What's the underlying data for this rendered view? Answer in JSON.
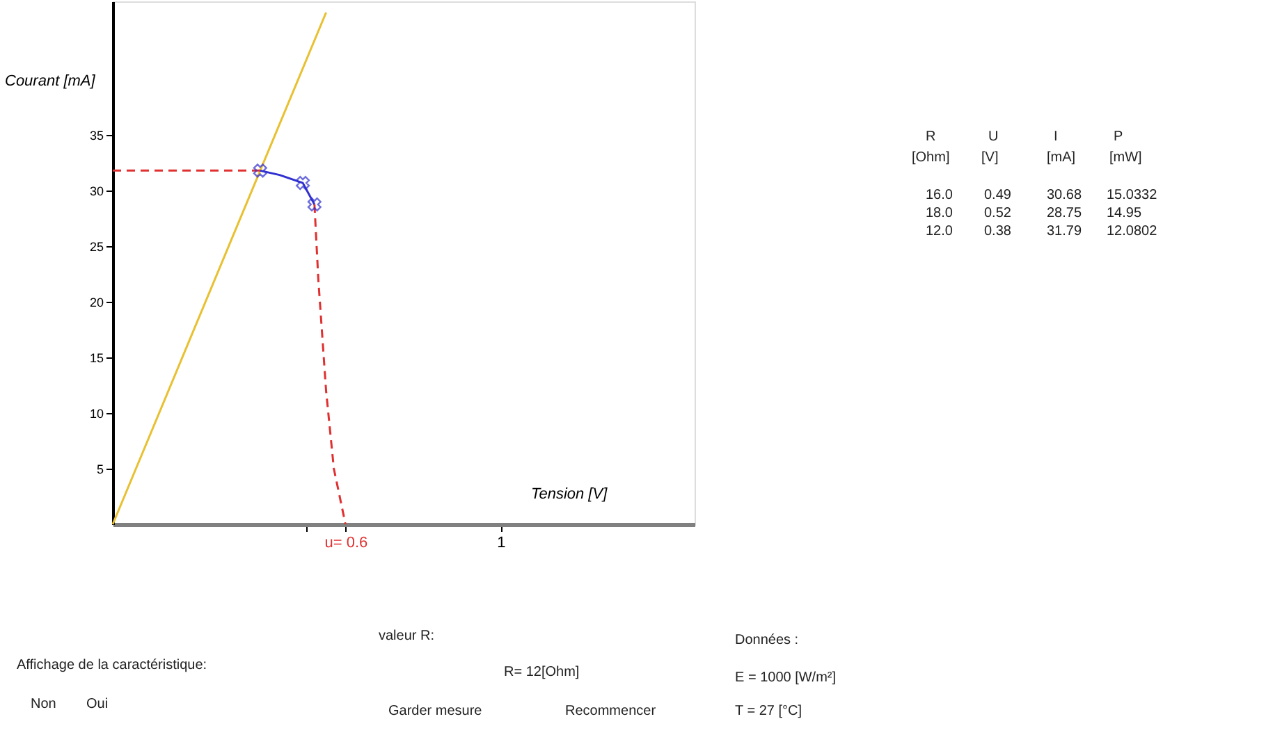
{
  "chart_data": {
    "type": "line",
    "xlabel": "Tension [V]",
    "ylabel": "Courant [mA]",
    "xlim": [
      0,
      1.5
    ],
    "ylim": [
      0,
      47
    ],
    "xticks": [
      {
        "value": 0.5,
        "label": null
      },
      {
        "value": 0.6,
        "label": "u= 0.6"
      },
      1
    ],
    "yticks": [
      5,
      10,
      15,
      20,
      25,
      30,
      35
    ],
    "grid": false,
    "series": [
      {
        "color": "#e8c030",
        "line_style": "solid",
        "x": [
          0,
          0.55
        ],
        "values": [
          0,
          46
        ]
      },
      {
        "color": "#e03030",
        "line_style": "dashed",
        "x": [
          0,
          0.38
        ],
        "values": [
          31.79,
          31.79
        ]
      },
      {
        "color": "#3030d0",
        "line_style": "solid",
        "x": [
          0.38,
          0.43,
          0.49,
          0.52
        ],
        "values": [
          31.79,
          31.4,
          30.68,
          28.75
        ]
      },
      {
        "color": "#e03030",
        "line_style": "dashed",
        "x": [
          0.52,
          0.53,
          0.55,
          0.57,
          0.6
        ],
        "values": [
          28.75,
          22,
          12,
          5,
          0
        ]
      },
      {
        "type": "scatter",
        "color": "#3030d0",
        "marker": "cross",
        "x": [
          0.38,
          0.49,
          0.52
        ],
        "values": [
          31.79,
          30.68,
          28.75
        ]
      }
    ],
    "annotations": [
      "R",
      "U",
      "I",
      "P",
      "[Ohm]",
      "[V]",
      "[mA]",
      "[mW]",
      "16.0",
      "0.49",
      "30.68",
      "15.0332",
      "18.0",
      "0.52",
      "28.75",
      "14.95",
      "12.0",
      "0.38",
      "31.79",
      "12.0802",
      "Affichage de la caractéristique:",
      "Non",
      "Oui",
      "valeur R:",
      "R= 12[Ohm]",
      "Garder mesure",
      "Recommencer",
      "Données :",
      "E = 1000 [W/m²]",
      "T = 27 [°C]"
    ]
  }
}
